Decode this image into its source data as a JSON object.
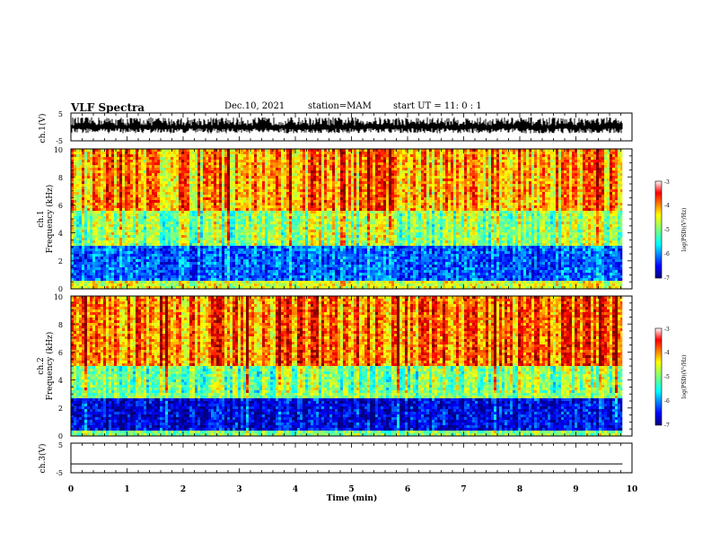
{
  "header": {
    "title": "VLF Spectra",
    "date": "Dec.10, 2021",
    "station": "station=MAM",
    "start_ut": "start  UT =   11: 0  : 1"
  },
  "chart_data": [
    {
      "type": "line",
      "name": "waveform-ch1",
      "ylabel": "ch.1(V)",
      "ylim": [
        -5,
        5
      ],
      "yticks": [
        "5",
        "-5"
      ],
      "xlim": [
        0,
        10
      ],
      "description_values": {
        "trace": "dense black VLF waveform filling roughly -2 to 3 V"
      }
    },
    {
      "type": "heatmap",
      "name": "spectrogram-ch1",
      "ylabel": "ch.1",
      "ylabel2": "Frequency (kHz)",
      "ylim": [
        0,
        10
      ],
      "yticks": [
        "0",
        "2",
        "4",
        "6",
        "8",
        "10"
      ],
      "xlim": [
        0,
        9.83
      ],
      "colorbar": {
        "label": "log(PSD)(V²/Hz)",
        "ticks": [
          "-3",
          "-4",
          "-5",
          "-6",
          "-7"
        ],
        "range": [
          -7,
          -3
        ]
      },
      "bands": [
        {
          "f_lo": 0,
          "f_hi": 0.6,
          "level": -4.6
        },
        {
          "f_lo": 0.6,
          "f_hi": 3.0,
          "level": -6.2
        },
        {
          "f_lo": 3.0,
          "f_hi": 5.5,
          "level": -4.9
        },
        {
          "f_lo": 5.5,
          "f_hi": 10,
          "level": -4.1
        }
      ]
    },
    {
      "type": "heatmap",
      "name": "spectrogram-ch2",
      "ylabel": "ch.2",
      "ylabel2": "Frequency (kHz)",
      "ylim": [
        0,
        10
      ],
      "yticks": [
        "0",
        "2",
        "4",
        "6",
        "8",
        "10"
      ],
      "xlim": [
        0,
        9.83
      ],
      "colorbar": {
        "label": "log(PSD)(V²/Hz)",
        "ticks": [
          "-3",
          "-4",
          "-5",
          "-6",
          "-7"
        ],
        "range": [
          -7,
          -3
        ]
      },
      "bands": [
        {
          "f_lo": 0,
          "f_hi": 0.4,
          "level": -5.0
        },
        {
          "f_lo": 0.4,
          "f_hi": 2.6,
          "level": -6.6
        },
        {
          "f_lo": 2.6,
          "f_hi": 5.0,
          "level": -5.0
        },
        {
          "f_lo": 5.0,
          "f_hi": 10,
          "level": -3.9
        }
      ]
    },
    {
      "type": "line",
      "name": "waveform-ch3",
      "ylabel": "ch.3(V)",
      "ylim": [
        -5,
        5
      ],
      "yticks": [
        "5",
        "-5"
      ],
      "xlim": [
        0,
        10
      ],
      "x": [
        0,
        9.83
      ],
      "y": [
        -2,
        -2
      ]
    }
  ],
  "xaxis": {
    "label": "Time (min)",
    "range": [
      0,
      10
    ],
    "ticks": [
      "0",
      "1",
      "2",
      "3",
      "4",
      "5",
      "6",
      "7",
      "8",
      "9",
      "10"
    ]
  },
  "colors": {
    "jet": [
      "#00007f",
      "#0000ff",
      "#007fff",
      "#00ffff",
      "#7fff7f",
      "#ffff00",
      "#ff7f00",
      "#ff0000",
      "#7f0000"
    ],
    "background": "#ffffff",
    "axis": "#000000"
  }
}
